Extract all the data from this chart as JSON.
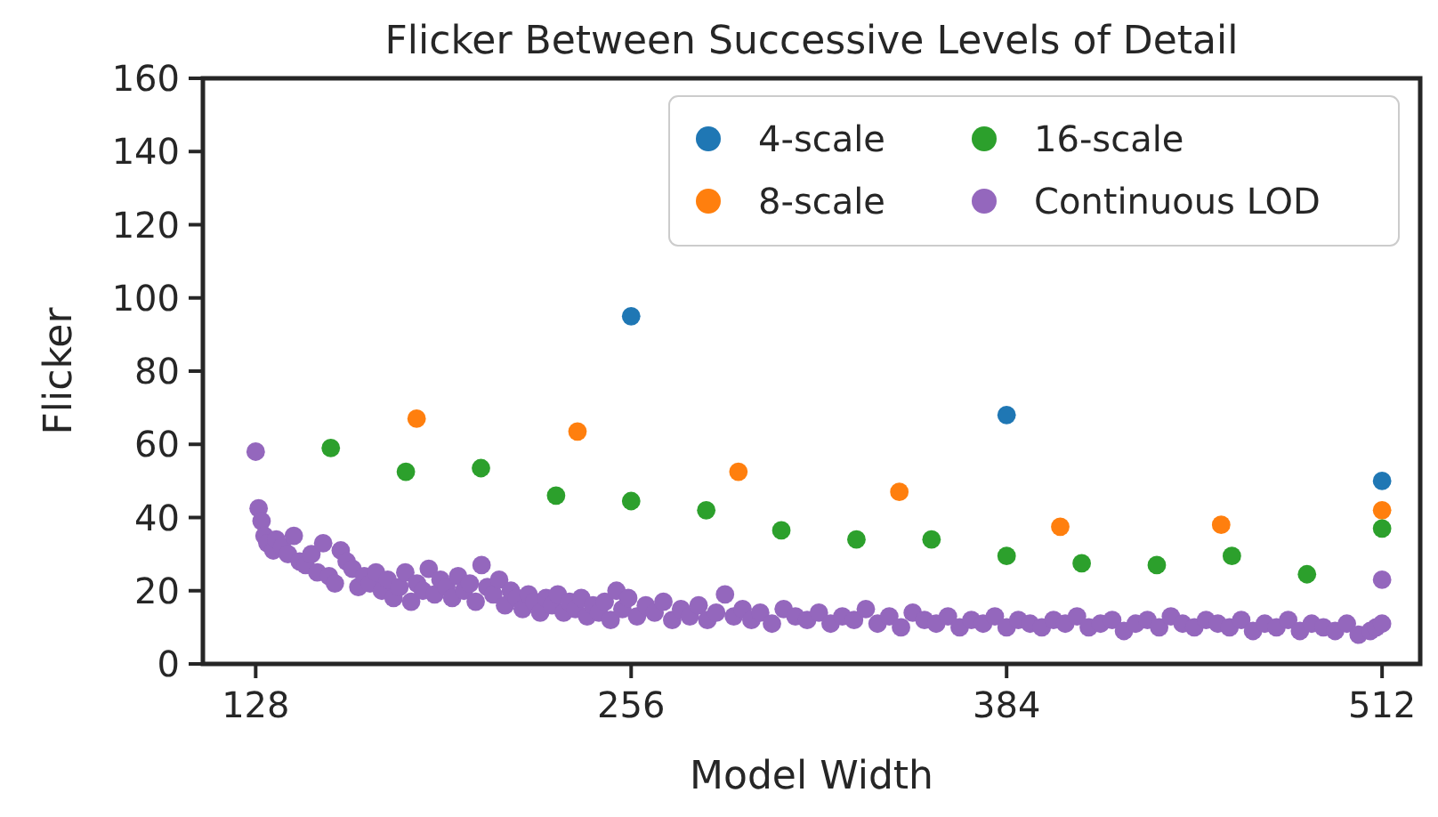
{
  "chart_data": {
    "type": "scatter",
    "title": "Flicker Between Successive Levels of Detail",
    "xlabel": "Model Width",
    "ylabel": "Flicker",
    "xlim": [
      110,
      525
    ],
    "xticks": [
      128,
      256,
      384,
      512
    ],
    "ylim": [
      0,
      160
    ],
    "yticks": [
      0,
      20,
      40,
      60,
      80,
      100,
      120,
      140,
      160
    ],
    "grid": false,
    "legend": "top right",
    "marker": "circle",
    "series": [
      {
        "name": "4-scale",
        "color": "#1f77b4",
        "x": [
          256,
          384,
          512
        ],
        "values": [
          95,
          68,
          50
        ]
      },
      {
        "name": "8-scale",
        "color": "#ff7f0e",
        "x": [
          182.86,
          237.71,
          292.57,
          347.43,
          402.29,
          457.14,
          512
        ],
        "values": [
          67,
          63.5,
          52.5,
          47,
          37.5,
          38,
          42
        ]
      },
      {
        "name": "16-scale",
        "color": "#2ca02c",
        "x": [
          153.6,
          179.2,
          204.8,
          230.4,
          256,
          281.6,
          307.2,
          332.8,
          358.4,
          384,
          409.6,
          435.2,
          460.8,
          486.4,
          512
        ],
        "values": [
          59,
          52.5,
          53.5,
          46,
          44.5,
          42,
          36.5,
          34,
          34,
          29.5,
          27.5,
          27,
          29.5,
          24.5,
          37
        ]
      },
      {
        "name": "Continuous LOD",
        "color": "#9467bd",
        "x": [
          128,
          129,
          130,
          131,
          132,
          134,
          135,
          137,
          139,
          141,
          143,
          145,
          147,
          149,
          151,
          153,
          155,
          157,
          159,
          161,
          163,
          165,
          167,
          169,
          171,
          173,
          175,
          177,
          179,
          181,
          183,
          185,
          187,
          189,
          191,
          193,
          195,
          197,
          199,
          201,
          203,
          205,
          207,
          209,
          211,
          213,
          215,
          217,
          219,
          221,
          223,
          225,
          227,
          229,
          231,
          233,
          235,
          237,
          239,
          241,
          243,
          245,
          247,
          249,
          251,
          253,
          255,
          258,
          261,
          264,
          267,
          270,
          273,
          276,
          279,
          282,
          285,
          288,
          291,
          294,
          297,
          300,
          304,
          308,
          312,
          316,
          320,
          324,
          328,
          332,
          336,
          340,
          344,
          348,
          352,
          356,
          360,
          364,
          368,
          372,
          376,
          380,
          384,
          388,
          392,
          396,
          400,
          404,
          408,
          412,
          416,
          420,
          424,
          428,
          432,
          436,
          440,
          444,
          448,
          452,
          456,
          460,
          464,
          468,
          472,
          476,
          480,
          484,
          488,
          492,
          496,
          500,
          504,
          508,
          510,
          512,
          512
        ],
        "values": [
          58,
          42.5,
          39,
          35,
          33,
          31,
          34,
          32,
          30,
          35,
          28,
          27,
          30,
          25,
          33,
          24,
          22,
          31,
          28,
          26,
          21,
          24,
          22,
          25,
          20,
          23,
          18,
          21,
          25,
          17,
          22,
          20,
          26,
          19,
          23,
          21,
          18,
          24,
          20,
          22,
          17,
          27,
          21,
          19,
          23,
          16,
          20,
          18,
          15,
          19,
          17,
          14,
          18,
          16,
          19,
          14,
          17,
          15,
          18,
          13,
          16,
          14,
          17,
          12,
          20,
          15,
          18,
          13,
          16,
          14,
          17,
          12,
          15,
          13,
          16,
          12,
          14,
          19,
          13,
          15,
          12,
          14,
          11,
          15,
          13,
          12,
          14,
          11,
          13,
          12,
          15,
          11,
          13,
          10,
          14,
          12,
          11,
          13,
          10,
          12,
          11,
          13,
          10,
          12,
          11,
          10,
          12,
          11,
          13,
          10,
          11,
          12,
          9,
          11,
          12,
          10,
          13,
          11,
          10,
          12,
          11,
          10,
          12,
          9,
          11,
          10,
          12,
          9,
          11,
          10,
          9,
          11,
          8,
          9,
          10,
          23,
          11
        ]
      }
    ]
  }
}
